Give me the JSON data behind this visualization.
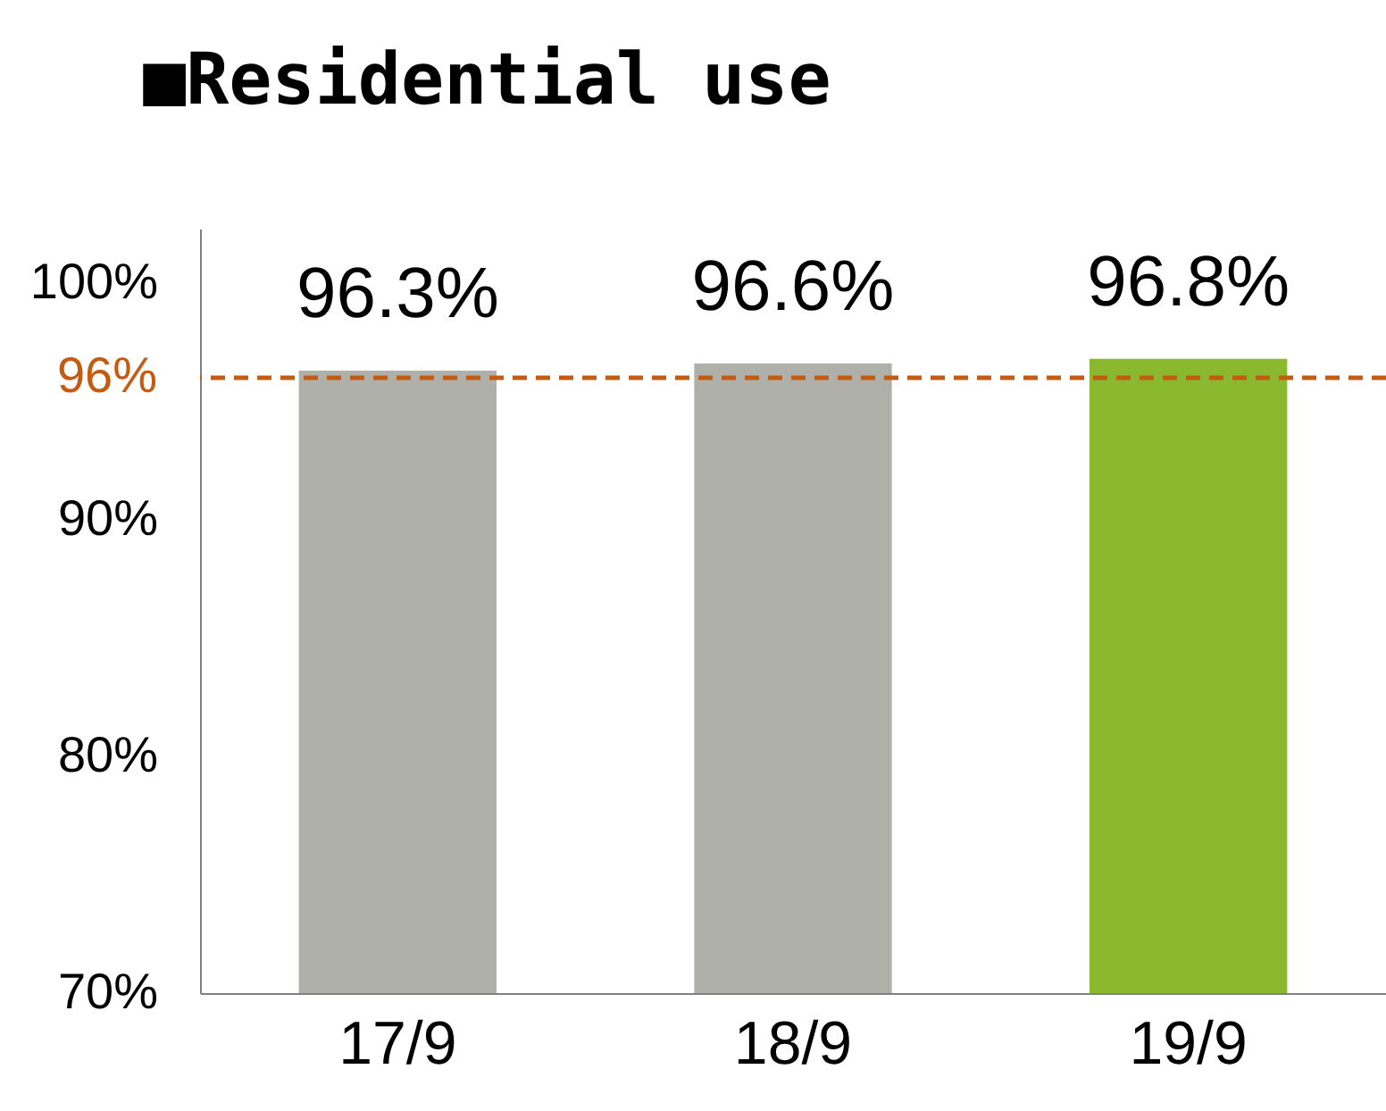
{
  "chart_data": {
    "type": "bar",
    "title": "■Residential use",
    "categories": [
      "17/9",
      "18/9",
      "19/9"
    ],
    "values": [
      96.3,
      96.6,
      96.8
    ],
    "colors": [
      "#b0b0ab",
      "#b0b0ab",
      "#8ab82e"
    ],
    "value_labels": [
      "96.3%",
      "96.6%",
      "96.8%"
    ],
    "ylim": [
      70,
      102.3
    ],
    "yticks": [
      {
        "value": 70,
        "label": "70%"
      },
      {
        "value": 80,
        "label": "80%"
      },
      {
        "value": 90,
        "label": "90%"
      },
      {
        "value": 100,
        "label": "100%"
      }
    ],
    "ref_lines": [
      {
        "axis": "y",
        "value": 96,
        "label": "96%",
        "color": "#c55a11",
        "line_style": "dashed"
      }
    ],
    "grid": false
  }
}
